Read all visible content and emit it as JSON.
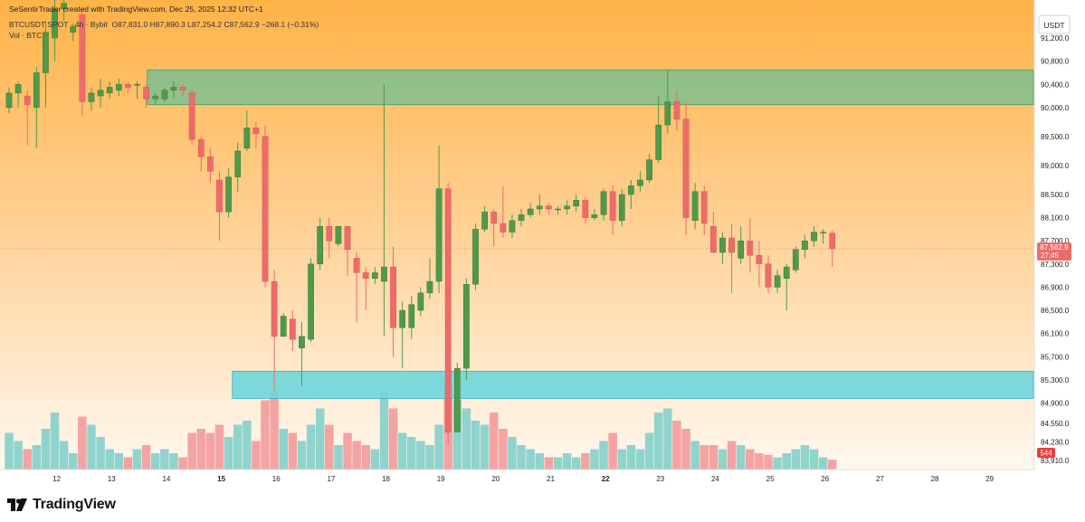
{
  "header": {
    "credit": "SeSentirTrader created with TradingView.com, Dec 25, 2025 12:32 UTC+1",
    "symbol": "BTCUSDT SPOT · 4h · Bybit",
    "ohlc": "O87,831.0  H87,890.3  L87,254.2  C87,562.9  −268.1 (−0.31%)",
    "volume_label": "Vol · BTC"
  },
  "price_axis": {
    "currency": "USDT",
    "last_price": "87,562.9",
    "countdown": "27:45",
    "volume_badge": "544"
  },
  "footer": {
    "brand": "TradingView"
  },
  "colors": {
    "bull": "#4f9a4a",
    "bear": "#ee6b6b",
    "bull_vol": "#8fd3cc",
    "bear_vol": "#f4a3a3",
    "supply_zone": "#7fbf8f",
    "demand_zone": "#6fd6dc",
    "bg_top": "#ffb347",
    "bg_bottom": "#fff8f0"
  },
  "chart_data": {
    "type": "candlestick",
    "title": "",
    "y_ticks": [
      "91,200.0",
      "90,800.0",
      "90,400.0",
      "90,000.0",
      "89,500.0",
      "89,000.0",
      "88,500.0",
      "88,100.0",
      "87,700.0",
      "87,300.0",
      "86,900.0",
      "86,500.0",
      "86,100.0",
      "85,700.0",
      "85,300.0",
      "84,900.0",
      "84,550.0",
      "84,230.0",
      "83,910.0"
    ],
    "y_tick_values": [
      91200,
      90800,
      90400,
      90000,
      89500,
      89000,
      88500,
      88100,
      87700,
      87300,
      86900,
      86500,
      86100,
      85700,
      85300,
      84900,
      84550,
      84230,
      83910
    ],
    "ylim": [
      83800,
      91700
    ],
    "x_ticks": [
      "12",
      "13",
      "14",
      "15",
      "16",
      "17",
      "18",
      "19",
      "20",
      "21",
      "22",
      "23",
      "24",
      "25",
      "26",
      "27",
      "28",
      "29"
    ],
    "zones": [
      {
        "name": "supply",
        "from_day": 13.65,
        "to_day": 30.45,
        "low": 90050,
        "high": 90650
      },
      {
        "name": "demand",
        "from_day": 15.2,
        "to_day": 30.45,
        "low": 84980,
        "high": 85450
      }
    ],
    "start_day": 11.0,
    "candles_per_day": 6,
    "candles": [
      [
        90000,
        90250,
        89900,
        90350,
        0.45
      ],
      [
        90250,
        90400,
        90000,
        90450,
        0.35
      ],
      [
        90200,
        90050,
        89350,
        90300,
        0.25
      ],
      [
        90000,
        90600,
        89300,
        90700,
        0.3
      ],
      [
        90600,
        91300,
        90000,
        91500,
        0.5
      ],
      [
        91200,
        91700,
        90800,
        91900,
        0.7
      ],
      [
        91700,
        91800,
        91500,
        91900,
        0.35
      ],
      [
        91300,
        91400,
        91150,
        91450,
        0.2
      ],
      [
        91600,
        90100,
        89850,
        91700,
        0.65
      ],
      [
        90100,
        90250,
        89950,
        90350,
        0.55
      ],
      [
        90200,
        90300,
        90000,
        90500,
        0.4
      ],
      [
        90250,
        90350,
        90150,
        90450,
        0.25
      ],
      [
        90300,
        90400,
        90200,
        90500,
        0.2
      ],
      [
        90400,
        90350,
        90250,
        90450,
        0.15
      ],
      [
        90400,
        90400,
        90150,
        90450,
        0.25
      ],
      [
        90350,
        90150,
        90000,
        90400,
        0.3
      ],
      [
        90150,
        90200,
        90050,
        90250,
        0.2
      ],
      [
        90150,
        90300,
        90100,
        90350,
        0.25
      ],
      [
        90300,
        90350,
        90150,
        90450,
        0.2
      ],
      [
        90350,
        90300,
        90200,
        90400,
        0.15
      ],
      [
        90250,
        89450,
        89350,
        90300,
        0.45
      ],
      [
        89450,
        89150,
        88900,
        89500,
        0.5
      ],
      [
        89150,
        88900,
        88700,
        89300,
        0.45
      ],
      [
        88750,
        88200,
        87700,
        88900,
        0.55
      ],
      [
        88200,
        88800,
        88100,
        88950,
        0.4
      ],
      [
        88800,
        89250,
        88550,
        89400,
        0.55
      ],
      [
        89300,
        89650,
        89250,
        89950,
        0.6
      ],
      [
        89650,
        89550,
        89300,
        89750,
        0.35
      ],
      [
        89500,
        87000,
        86900,
        89700,
        0.85
      ],
      [
        87000,
        86050,
        85100,
        87200,
        0.95
      ],
      [
        86050,
        86400,
        86050,
        86450,
        0.5
      ],
      [
        86350,
        86000,
        85800,
        86500,
        0.45
      ],
      [
        85850,
        86050,
        85200,
        86300,
        0.35
      ],
      [
        86000,
        87300,
        85950,
        87400,
        0.55
      ],
      [
        87300,
        87950,
        87200,
        88100,
        0.75
      ],
      [
        87950,
        87700,
        87400,
        88100,
        0.55
      ],
      [
        87650,
        87950,
        87600,
        87950,
        0.3
      ],
      [
        87950,
        87550,
        87100,
        87950,
        0.45
      ],
      [
        87400,
        87150,
        86300,
        87500,
        0.35
      ],
      [
        87150,
        87050,
        86500,
        87250,
        0.3
      ],
      [
        87050,
        87150,
        86950,
        87250,
        0.25
      ],
      [
        87000,
        87250,
        86050,
        90400,
        0.95
      ],
      [
        87250,
        86200,
        85700,
        87600,
        0.75
      ],
      [
        86200,
        86500,
        85500,
        86650,
        0.45
      ],
      [
        86200,
        86600,
        86000,
        86750,
        0.4
      ],
      [
        86500,
        86800,
        86400,
        86900,
        0.35
      ],
      [
        86800,
        87000,
        86700,
        87400,
        0.3
      ],
      [
        87000,
        88600,
        86800,
        89350,
        0.55
      ],
      [
        88600,
        84400,
        84200,
        88700,
        1.0
      ],
      [
        84400,
        85500,
        84400,
        85600,
        0.85
      ],
      [
        85500,
        86950,
        85300,
        87050,
        0.75
      ],
      [
        86950,
        87900,
        86850,
        88000,
        0.6
      ],
      [
        87900,
        88200,
        87850,
        88300,
        0.55
      ],
      [
        88200,
        88000,
        87600,
        88250,
        0.7
      ],
      [
        88000,
        87850,
        87750,
        88650,
        0.5
      ],
      [
        87850,
        88050,
        87750,
        88150,
        0.4
      ],
      [
        88050,
        88150,
        87950,
        88250,
        0.3
      ],
      [
        88150,
        88250,
        88100,
        88350,
        0.25
      ],
      [
        88250,
        88300,
        88150,
        88500,
        0.2
      ],
      [
        88300,
        88250,
        88150,
        88350,
        0.15
      ],
      [
        88250,
        88250,
        88150,
        88300,
        0.15
      ],
      [
        88250,
        88300,
        88150,
        88400,
        0.2
      ],
      [
        88300,
        88400,
        88200,
        88500,
        0.15
      ],
      [
        88400,
        88100,
        88000,
        88450,
        0.2
      ],
      [
        88100,
        88150,
        88050,
        88250,
        0.25
      ],
      [
        88150,
        88550,
        88050,
        88600,
        0.35
      ],
      [
        88550,
        88050,
        87800,
        88650,
        0.45
      ],
      [
        88050,
        88500,
        87950,
        88600,
        0.25
      ],
      [
        88500,
        88650,
        88250,
        88750,
        0.3
      ],
      [
        88650,
        88750,
        88550,
        88900,
        0.25
      ],
      [
        88750,
        89100,
        88700,
        89200,
        0.45
      ],
      [
        89100,
        89700,
        89050,
        90200,
        0.7
      ],
      [
        89700,
        90100,
        89550,
        90650,
        0.75
      ],
      [
        90100,
        89800,
        89600,
        90300,
        0.6
      ],
      [
        89800,
        88100,
        87800,
        90100,
        0.5
      ],
      [
        88050,
        88550,
        87900,
        88700,
        0.35
      ],
      [
        88550,
        88000,
        87800,
        88650,
        0.3
      ],
      [
        87950,
        87500,
        87500,
        88200,
        0.3
      ],
      [
        87500,
        87750,
        87300,
        87850,
        0.25
      ],
      [
        87750,
        87500,
        86800,
        88000,
        0.35
      ],
      [
        87400,
        87700,
        87300,
        87950,
        0.3
      ],
      [
        87700,
        87450,
        87150,
        88100,
        0.25
      ],
      [
        87450,
        87300,
        86900,
        87700,
        0.2
      ],
      [
        87300,
        86900,
        86800,
        87450,
        0.18
      ],
      [
        86900,
        87100,
        86800,
        87200,
        0.15
      ],
      [
        87050,
        87250,
        86500,
        87300,
        0.2
      ],
      [
        87200,
        87550,
        87150,
        87600,
        0.25
      ],
      [
        87550,
        87700,
        87400,
        87800,
        0.3
      ],
      [
        87700,
        87850,
        87600,
        87950,
        0.25
      ],
      [
        87850,
        87850,
        87650,
        87900,
        0.15
      ],
      [
        87831,
        87563,
        87254,
        87890,
        0.12
      ]
    ]
  }
}
